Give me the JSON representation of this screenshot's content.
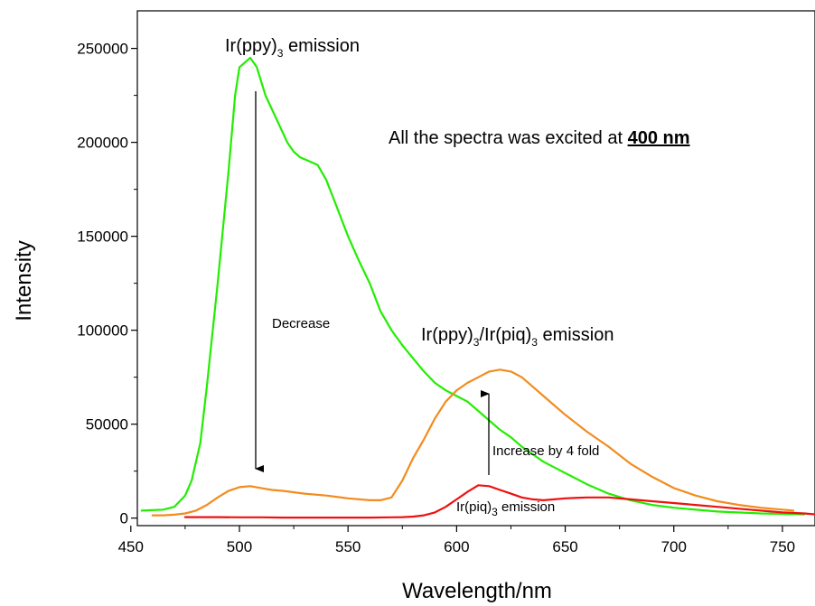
{
  "chart_data": {
    "type": "line",
    "xlabel": "Wavelength/nm",
    "ylabel": "Intensity",
    "xlim": [
      453,
      765
    ],
    "ylim": [
      -4000,
      270000
    ],
    "xticks": [
      450,
      500,
      550,
      600,
      650,
      700,
      750
    ],
    "xtick_labels": [
      "450",
      "500",
      "550",
      "600",
      "650",
      "700",
      "750"
    ],
    "yticks": [
      0,
      50000,
      100000,
      150000,
      200000,
      250000
    ],
    "ytick_labels": [
      "0",
      "50000",
      "100000",
      "150000",
      "200000",
      "250000"
    ],
    "grid": false,
    "series": [
      {
        "color": "#22ee00",
        "x": [
          455,
          465,
          470,
          475,
          478,
          482,
          485,
          490,
          495,
          498,
          500,
          503,
          505,
          508,
          512,
          518,
          522,
          525,
          528,
          532,
          536,
          540,
          545,
          550,
          555,
          560,
          565,
          570,
          575,
          580,
          585,
          590,
          595,
          600,
          605,
          610,
          615,
          620,
          625,
          630,
          635,
          640,
          650,
          660,
          670,
          680,
          690,
          700,
          720,
          740,
          760
        ],
        "y": [
          4000,
          4500,
          6000,
          12000,
          20000,
          40000,
          70000,
          125000,
          185000,
          225000,
          240000,
          243000,
          245000,
          240000,
          225000,
          210000,
          200000,
          195000,
          192000,
          190000,
          188000,
          180000,
          165000,
          150000,
          137000,
          125000,
          110000,
          100000,
          92000,
          85000,
          78000,
          72000,
          68000,
          65000,
          62000,
          57000,
          52000,
          47000,
          43000,
          38000,
          34000,
          30000,
          24000,
          18000,
          13000,
          9500,
          7000,
          5500,
          3500,
          2500,
          2000
        ]
      },
      {
        "color": "#f28c1e",
        "x": [
          460,
          465,
          470,
          475,
          480,
          485,
          490,
          495,
          500,
          505,
          510,
          515,
          520,
          530,
          540,
          550,
          560,
          565,
          570,
          575,
          580,
          585,
          590,
          595,
          600,
          605,
          610,
          615,
          620,
          625,
          630,
          635,
          640,
          650,
          660,
          670,
          680,
          690,
          700,
          710,
          720,
          730,
          740,
          750,
          755
        ],
        "y": [
          1500,
          1500,
          1800,
          2500,
          4000,
          7000,
          11000,
          14500,
          16500,
          17000,
          16000,
          15000,
          14500,
          13000,
          12000,
          10500,
          9500,
          9500,
          11000,
          20000,
          32000,
          42000,
          53000,
          62000,
          68000,
          72000,
          75000,
          78000,
          79000,
          78000,
          75000,
          70000,
          65000,
          55000,
          46000,
          38000,
          29000,
          22000,
          16000,
          12000,
          9000,
          7000,
          5500,
          4500,
          4000
        ]
      },
      {
        "color": "#ee1111",
        "x": [
          475,
          480,
          490,
          500,
          510,
          520,
          530,
          540,
          550,
          560,
          570,
          575,
          580,
          585,
          590,
          595,
          600,
          605,
          610,
          615,
          620,
          625,
          630,
          635,
          640,
          645,
          650,
          660,
          670,
          680,
          690,
          700,
          710,
          720,
          730,
          740,
          750,
          760,
          765
        ],
        "y": [
          500,
          500,
          500,
          400,
          400,
          300,
          300,
          300,
          300,
          300,
          400,
          500,
          800,
          1500,
          3000,
          6000,
          10000,
          14000,
          17500,
          17000,
          15000,
          13000,
          11000,
          10000,
          9500,
          10000,
          10500,
          11000,
          11000,
          10000,
          9000,
          8000,
          7000,
          6000,
          5000,
          4000,
          3000,
          2500,
          2000
        ]
      }
    ],
    "annotations": {
      "ppy_main": "Ir(ppy)",
      "ppy_sub": "3",
      "ppy_tail": " emission",
      "excite_main": "All the spectra was excited at ",
      "excite_bold": "400 nm",
      "decrease": "Decrease",
      "mix_a": "Ir(ppy)",
      "mix_sub1": "3",
      "mix_b": "/Ir(piq)",
      "mix_sub2": "3",
      "mix_tail": " emission",
      "increase": "Increase by 4 fold",
      "piq_main": "Ir(piq)",
      "piq_sub": "3",
      "piq_tail": " emission"
    }
  }
}
